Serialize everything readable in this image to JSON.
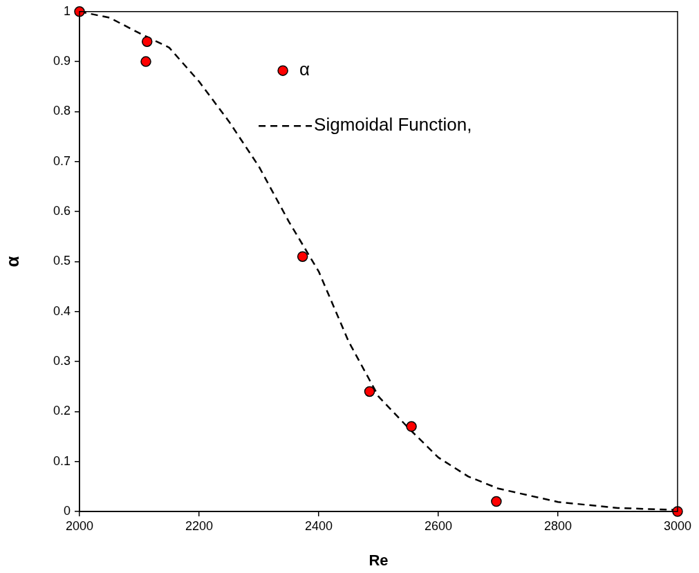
{
  "chart_data": {
    "type": "scatter",
    "xlabel": "Re",
    "ylabel": "α",
    "xlim": [
      2000,
      3000
    ],
    "xticks": [
      2000,
      2200,
      2400,
      2600,
      2800,
      3000
    ],
    "ylim": [
      0,
      1
    ],
    "yticks": [
      0,
      0.1,
      0.2,
      0.3,
      0.4,
      0.5,
      0.6,
      0.7,
      0.8,
      0.9,
      1
    ],
    "grid": false,
    "legend": "top right",
    "marker": "circle",
    "series": [
      {
        "name": "α",
        "type": "scatter",
        "color": "#ff0000",
        "x": [
          2000,
          2113,
          2111,
          2373,
          2485,
          2555,
          2697,
          3000
        ],
        "values": [
          1,
          0.94,
          0.9,
          0.51,
          0.24,
          0.17,
          0.02,
          0
        ]
      },
      {
        "name": "Sigmoidal Function,",
        "type": "line",
        "color": "#000000",
        "line_style": "dashed",
        "marker": "none",
        "x": [
          2000,
          2050,
          2100,
          2150,
          2200,
          2250,
          2300,
          2350,
          2400,
          2450,
          2500,
          2550,
          2600,
          2650,
          2700,
          2800,
          2900,
          3000
        ],
        "values": [
          1,
          0.988,
          0.957,
          0.928,
          0.86,
          0.78,
          0.69,
          0.58,
          0.48,
          0.34,
          0.23,
          0.167,
          0.108,
          0.07,
          0.046,
          0.019,
          0.007,
          0.003
        ]
      }
    ]
  }
}
